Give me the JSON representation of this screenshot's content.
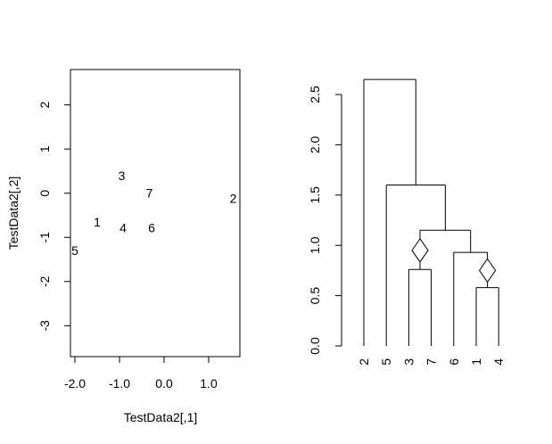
{
  "chart_data": [
    {
      "type": "scatter",
      "xlabel": "TestData2[,1]",
      "ylabel": "TestData2[,2]",
      "xlim": [
        -2.1,
        1.7
      ],
      "ylim": [
        -3.7,
        2.8
      ],
      "xticks": [
        -2.0,
        -1.0,
        0.0,
        1.0
      ],
      "xtick_labels": [
        "-2.0",
        "-1.0",
        "0.0",
        "1.0"
      ],
      "yticks": [
        -3,
        -2,
        -1,
        0,
        1,
        2
      ],
      "ytick_labels": [
        "-3",
        "-2",
        "-1",
        "0",
        "1",
        "2"
      ],
      "points": [
        {
          "label": "1",
          "x": -1.5,
          "y": -0.65
        },
        {
          "label": "2",
          "x": 1.55,
          "y": -0.12
        },
        {
          "label": "3",
          "x": -0.95,
          "y": 0.4
        },
        {
          "label": "4",
          "x": -0.92,
          "y": -0.78
        },
        {
          "label": "5",
          "x": -2.0,
          "y": -1.3
        },
        {
          "label": "6",
          "x": -0.28,
          "y": -0.78
        },
        {
          "label": "7",
          "x": -0.33,
          "y": 0.0
        }
      ]
    },
    {
      "type": "dendrogram",
      "ylim": [
        0,
        2.65
      ],
      "yticks": [
        0.0,
        0.5,
        1.0,
        1.5,
        2.0,
        2.5
      ],
      "ytick_labels": [
        "0.0",
        "0.5",
        "1.0",
        "1.5",
        "2.0",
        "2.5"
      ],
      "leaves": [
        "2",
        "5",
        "3",
        "7",
        "6",
        "1",
        "4"
      ],
      "merges": [
        {
          "a": "3",
          "b": "7",
          "height": 0.76
        },
        {
          "a": "1",
          "b": "4",
          "height": 0.58
        },
        {
          "a": "6",
          "b": "(1,4)",
          "height": 0.93
        },
        {
          "a": "(3,7)",
          "b": "(6,(1,4))",
          "height": 1.15
        },
        {
          "a": "5",
          "b": "((3,7),(6,(1,4)))",
          "height": 1.6
        },
        {
          "a": "2",
          "b": "(5,((3,7),(6,(1,4))))",
          "height": 2.65
        }
      ],
      "diamond_markers": [
        {
          "between": [
            "3",
            "7"
          ],
          "y": 0.95
        },
        {
          "between": [
            "1",
            "4"
          ],
          "y": 0.75
        }
      ]
    }
  ]
}
